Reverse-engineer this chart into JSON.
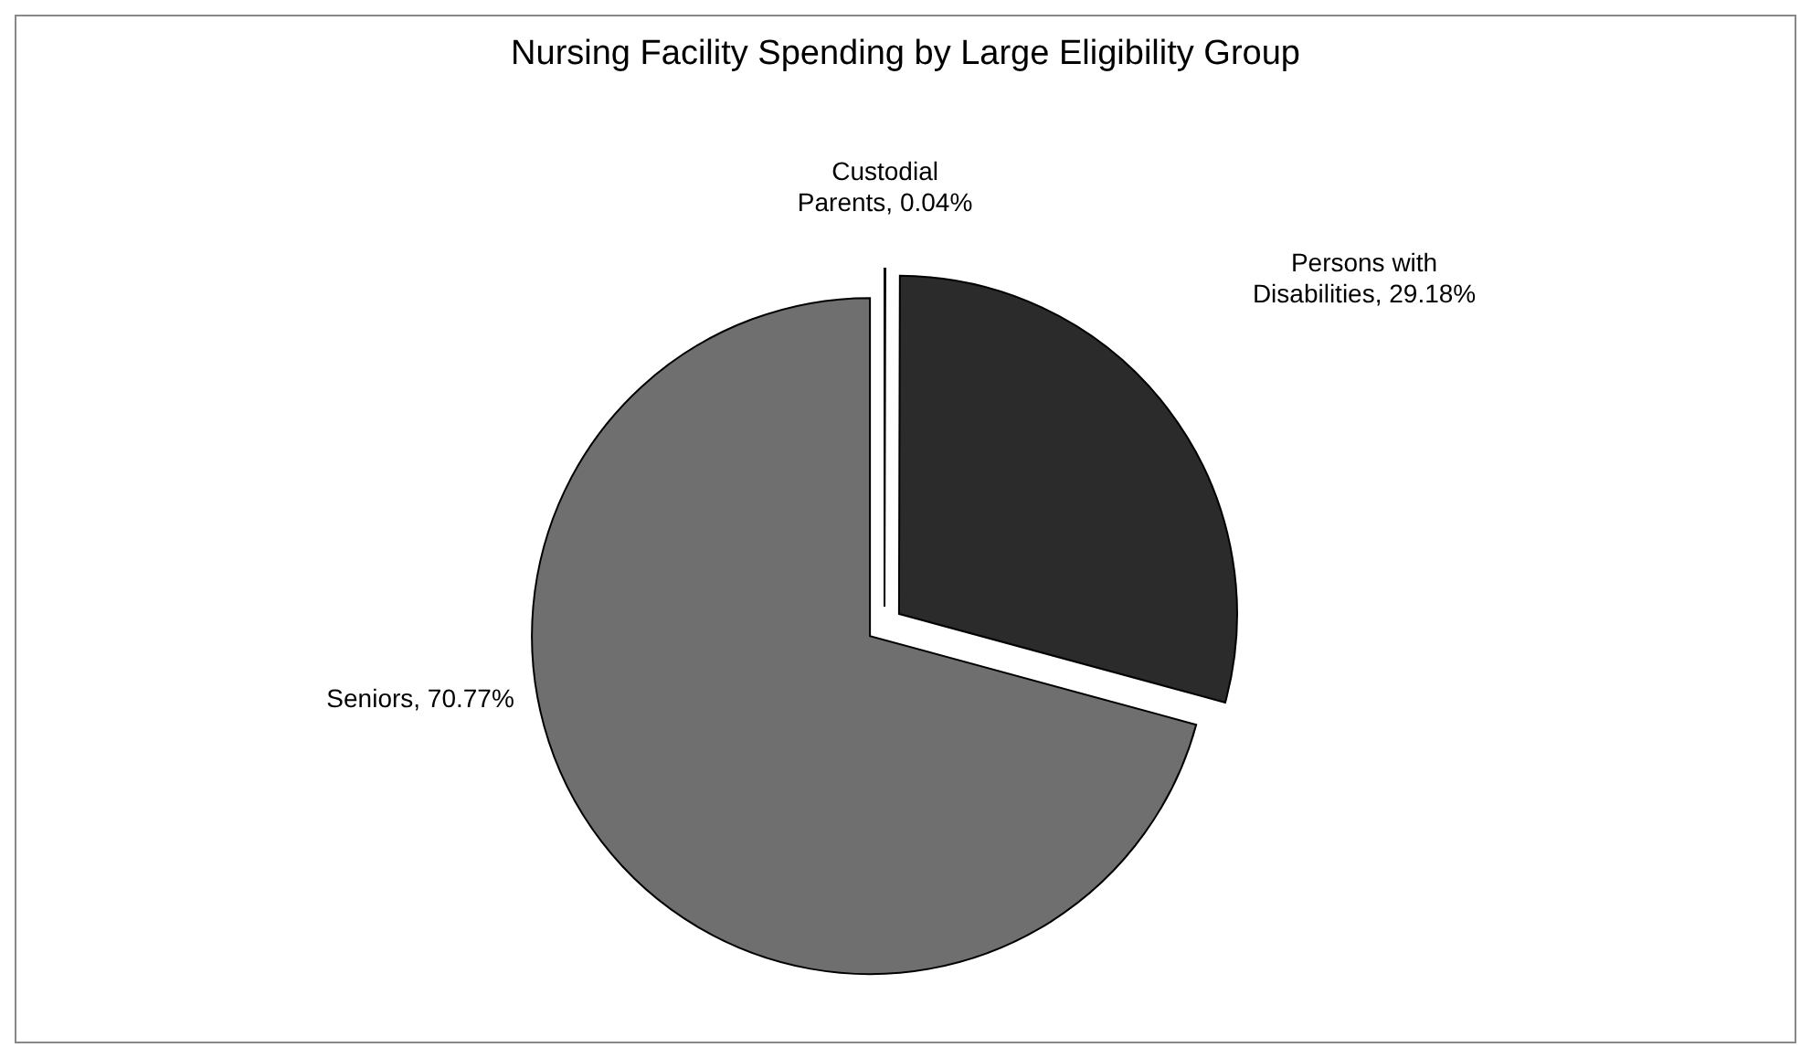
{
  "chart_data": {
    "type": "pie",
    "title": "Nursing Facility Spending by Large Eligibility Group",
    "categories": [
      "Custodial Parents",
      "Persons with Disabilities",
      "Seniors"
    ],
    "values": [
      0.04,
      29.18,
      70.77
    ],
    "value_labels": [
      "0.04%",
      "29.18%",
      "70.77%"
    ],
    "colors": [
      "#111111",
      "#2b2b2b",
      "#6f6f6f"
    ],
    "legend": false
  }
}
